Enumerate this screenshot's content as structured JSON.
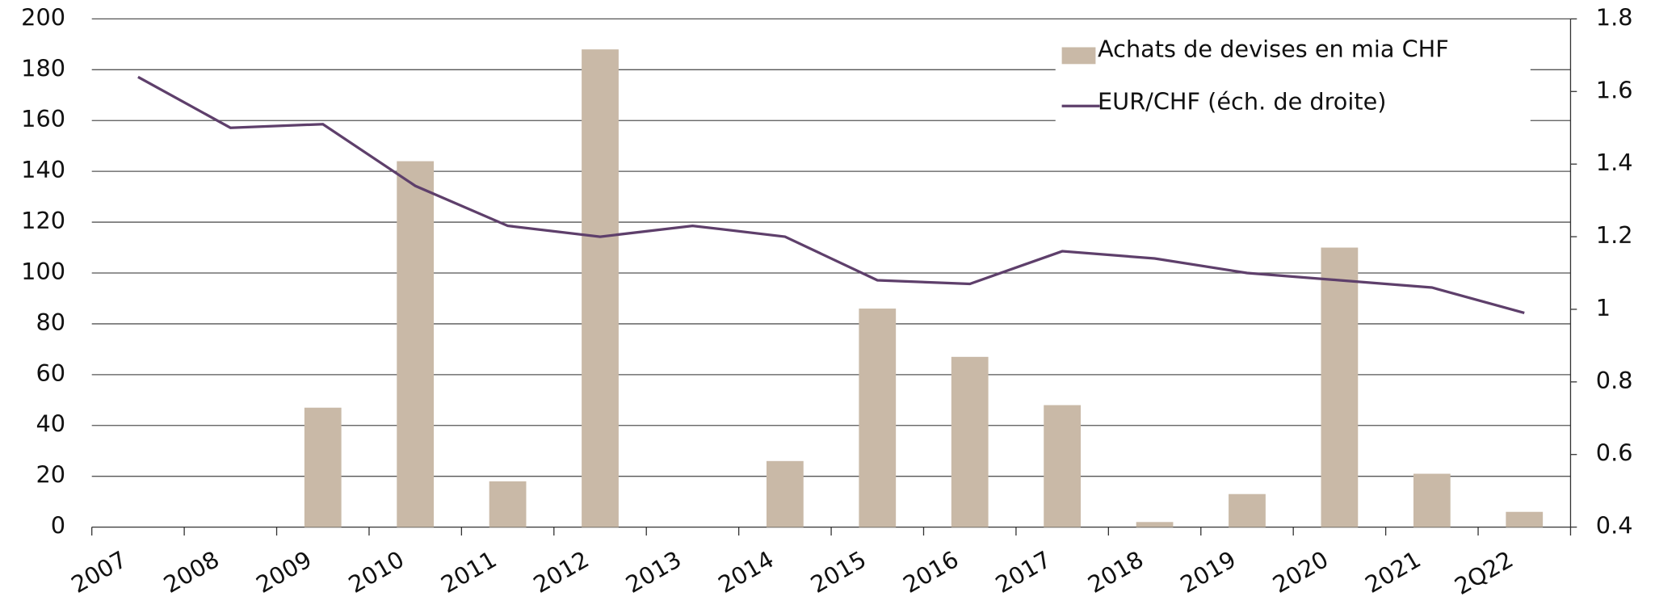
{
  "chart_data": {
    "type": "bar",
    "categories": [
      "2007",
      "2008",
      "2009",
      "2010",
      "2011",
      "2012",
      "2013",
      "2014",
      "2015",
      "2016",
      "2017",
      "2018",
      "2019",
      "2020",
      "2021",
      "2Q22"
    ],
    "series": [
      {
        "name": "Achats de devises en mia CHF",
        "type": "bar",
        "color": "#c9b9a7",
        "values": [
          0,
          0,
          47,
          144,
          18,
          188,
          0,
          26,
          86,
          67,
          48,
          2,
          13,
          110,
          21,
          6
        ]
      },
      {
        "name": "EUR/CHF (éch. de droite)",
        "type": "line",
        "axis": "y2",
        "color": "#5e3f6b",
        "values": [
          1.64,
          1.5,
          1.51,
          1.34,
          1.23,
          1.2,
          1.23,
          1.2,
          1.08,
          1.07,
          1.16,
          1.14,
          1.1,
          1.08,
          1.06,
          0.99
        ]
      }
    ],
    "ylim": [
      0,
      200
    ],
    "yticks": [
      0,
      20,
      40,
      60,
      80,
      100,
      120,
      140,
      160,
      180,
      200
    ],
    "y2lim": [
      0.4,
      1.8
    ],
    "y2ticks": [
      0.4,
      0.6,
      0.8,
      1,
      1.2,
      1.4,
      1.6,
      1.8
    ],
    "grid": true,
    "legend": "upper right"
  }
}
